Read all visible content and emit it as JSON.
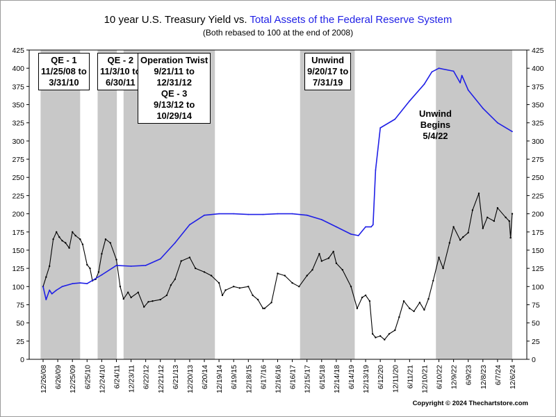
{
  "header": {
    "title_part1": "10 year U.S. Treasury Yield vs. ",
    "title_part2": "Total Assets of the Federal Reserve System",
    "subtitle": "(Both rebased to 100 at the end of 2008)"
  },
  "footer": {
    "copyright": "Copyright © 2024 Thechartstore.com"
  },
  "colors": {
    "treasury": "#000000",
    "fed_assets": "#1f1fe6",
    "shade": "#c8c8c8",
    "title_accent": "#1f1fe6"
  },
  "annotations": [
    {
      "id": "qe1",
      "lines": [
        "QE - 1",
        "11/25/08 to",
        "3/31/10"
      ]
    },
    {
      "id": "qe2",
      "lines": [
        "QE - 2",
        "11/3/10 to",
        "6/30/11"
      ]
    },
    {
      "id": "twist",
      "lines": [
        "Operation Twist",
        "9/21/11 to",
        "12/31/12",
        "QE - 3",
        "9/13/12 to",
        "10/29/14"
      ]
    },
    {
      "id": "unwind1",
      "lines": [
        "Unwind",
        "9/20/17 to",
        "7/31/19"
      ]
    },
    {
      "id": "unwind2",
      "lines": [
        "Unwind",
        "Begins",
        "5/4/22"
      ]
    }
  ],
  "chart_data": {
    "type": "line",
    "title": "10 year U.S. Treasury Yield vs. Total Assets of the Federal Reserve System",
    "subtitle": "(Both rebased to 100 at the end of 2008)",
    "ylim": [
      0,
      425
    ],
    "y_ticks": [
      0,
      25,
      50,
      75,
      100,
      125,
      150,
      175,
      200,
      225,
      250,
      275,
      300,
      325,
      350,
      375,
      400,
      425
    ],
    "x_tick_labels": [
      "12/26/08",
      "6/26/09",
      "12/25/09",
      "6/25/10",
      "12/24/10",
      "6/24/11",
      "12/23/11",
      "6/22/12",
      "12/21/12",
      "6/21/13",
      "12/20/13",
      "6/20/14",
      "12/19/14",
      "6/19/15",
      "12/18/15",
      "6/17/16",
      "12/16/16",
      "6/16/17",
      "12/15/17",
      "6/15/18",
      "12/14/18",
      "6/14/19",
      "12/13/19",
      "6/12/20",
      "12/11/20",
      "6/11/21",
      "12/10/21",
      "6/10/22",
      "12/9/22",
      "6/9/23",
      "12/8/23",
      "6/7/24",
      "12/6/24"
    ],
    "grid": false,
    "shaded_periods": [
      {
        "label": "QE - 1",
        "start": "11/25/08",
        "end": "3/31/10"
      },
      {
        "label": "QE - 2",
        "start": "11/3/10",
        "end": "6/30/11"
      },
      {
        "label": "Operation Twist / QE - 3",
        "start": "9/21/11",
        "end": "10/29/14"
      },
      {
        "label": "Unwind",
        "start": "9/20/17",
        "end": "7/31/19"
      },
      {
        "label": "Unwind Begins",
        "start": "5/4/22",
        "end": "end"
      }
    ],
    "series": [
      {
        "key": "treasury",
        "x": [
          "12/26/08",
          "2/1/09",
          "3/15/09",
          "5/1/09",
          "6/10/09",
          "7/15/09",
          "8/20/09",
          "10/1/09",
          "11/15/09",
          "12/25/09",
          "2/1/10",
          "3/31/10",
          "5/1/10",
          "6/25/10",
          "7/31/10",
          "8/31/10",
          "10/10/10",
          "11/15/10",
          "12/24/10",
          "2/10/11",
          "4/10/11",
          "6/24/11",
          "8/10/11",
          "9/21/11",
          "11/15/11",
          "12/23/11",
          "3/20/12",
          "6/1/12",
          "7/25/12",
          "9/15/12",
          "12/21/12",
          "3/10/13",
          "5/1/13",
          "6/21/13",
          "9/5/13",
          "12/20/13",
          "3/1/14",
          "6/20/14",
          "9/15/14",
          "12/19/14",
          "1/30/15",
          "3/10/15",
          "6/19/15",
          "9/1/15",
          "12/18/15",
          "2/10/16",
          "4/15/16",
          "6/17/16",
          "7/8/16",
          "9/30/16",
          "12/16/16",
          "3/15/17",
          "6/16/17",
          "9/8/17",
          "12/15/17",
          "2/20/18",
          "5/17/18",
          "6/15/18",
          "9/10/18",
          "11/8/18",
          "12/14/18",
          "3/1/19",
          "6/14/19",
          "8/30/19",
          "10/31/19",
          "12/13/19",
          "2/1/20",
          "3/9/20",
          "4/15/20",
          "6/12/20",
          "8/4/20",
          "10/1/20",
          "12/11/20",
          "2/1/21",
          "3/31/21",
          "6/11/21",
          "8/4/21",
          "10/15/21",
          "12/10/21",
          "1/31/22",
          "3/31/22",
          "6/10/22",
          "8/1/22",
          "10/20/22",
          "12/9/22",
          "3/1/23",
          "4/6/23",
          "6/9/23",
          "8/1/23",
          "10/19/23",
          "12/8/23",
          "2/1/24",
          "4/25/24",
          "6/7/24",
          "9/16/24",
          "10/31/24",
          "11/15/24",
          "12/6/24"
        ],
        "values": [
          100,
          113,
          128,
          165,
          175,
          168,
          163,
          160,
          153,
          175,
          170,
          165,
          158,
          130,
          125,
          108,
          110,
          120,
          145,
          165,
          160,
          137,
          100,
          83,
          92,
          85,
          92,
          72,
          79,
          80,
          82,
          88,
          102,
          110,
          135,
          140,
          125,
          120,
          115,
          105,
          88,
          95,
          100,
          98,
          100,
          88,
          82,
          70,
          70,
          78,
          118,
          115,
          105,
          100,
          115,
          123,
          145,
          135,
          139,
          148,
          132,
          123,
          100,
          70,
          85,
          88,
          80,
          35,
          30,
          32,
          27,
          35,
          40,
          58,
          80,
          70,
          66,
          78,
          68,
          83,
          108,
          140,
          125,
          160,
          182,
          164,
          168,
          174,
          205,
          228,
          180,
          195,
          190,
          208,
          195,
          190,
          167,
          200
        ]
      },
      {
        "key": "fed_assets",
        "x": [
          "12/26/08",
          "2/1/09",
          "3/15/09",
          "4/15/09",
          "6/10/09",
          "8/20/09",
          "12/25/09",
          "3/31/10",
          "6/25/10",
          "12/24/10",
          "6/24/11",
          "12/23/11",
          "6/22/12",
          "12/21/12",
          "6/21/13",
          "12/20/13",
          "6/20/14",
          "12/19/14",
          "6/19/15",
          "12/18/15",
          "6/17/16",
          "12/16/16",
          "6/16/17",
          "12/15/17",
          "6/15/18",
          "12/14/18",
          "6/14/19",
          "9/15/19",
          "12/13/19",
          "2/20/20",
          "3/15/20",
          "4/15/20",
          "6/12/20",
          "12/11/20",
          "6/11/21",
          "12/10/21",
          "3/15/22",
          "6/10/22",
          "12/9/22",
          "3/1/23",
          "3/22/23",
          "6/9/23",
          "12/8/23",
          "6/7/24",
          "12/6/24"
        ],
        "values": [
          100,
          82,
          95,
          90,
          95,
          100,
          104,
          105,
          104,
          116,
          129,
          128,
          129,
          138,
          160,
          185,
          198,
          200,
          200,
          199,
          199,
          200,
          200,
          198,
          192,
          182,
          172,
          170,
          182,
          182,
          185,
          260,
          318,
          330,
          355,
          378,
          395,
          400,
          396,
          380,
          390,
          370,
          345,
          325,
          313
        ]
      }
    ]
  }
}
